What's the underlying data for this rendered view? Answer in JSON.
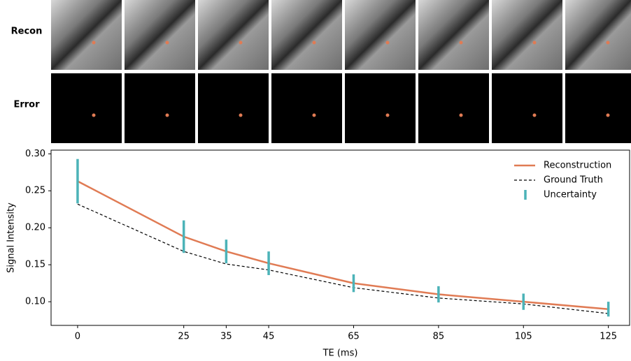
{
  "row_labels": [
    "Recon",
    "Error"
  ],
  "chart_data": {
    "type": "line",
    "x_label": "TE (ms)",
    "y_label": "Signal Intensity",
    "x": [
      0,
      25,
      35,
      45,
      65,
      85,
      105,
      125
    ],
    "series": [
      {
        "name": "Reconstruction",
        "color": "#e07b54",
        "values": [
          0.263,
          0.188,
          0.168,
          0.152,
          0.125,
          0.11,
          0.1,
          0.09
        ]
      },
      {
        "name": "Ground Truth",
        "color": "#000000",
        "values": [
          0.232,
          0.168,
          0.151,
          0.143,
          0.119,
          0.105,
          0.097,
          0.084
        ]
      },
      {
        "name": "Uncertainty",
        "color": "#4cb3b8",
        "values": [
          0.03,
          0.022,
          0.016,
          0.016,
          0.012,
          0.011,
          0.011,
          0.01
        ]
      }
    ],
    "xlim": [
      -6.25,
      130
    ],
    "xticks": [
      0,
      25,
      35,
      45,
      65,
      85,
      105,
      125
    ],
    "ylim": [
      0.068,
      0.305
    ],
    "yticks": [
      {
        "value": 0.1,
        "label": "0.10"
      },
      0.15,
      {
        "value": 0.2,
        "label": "0.20"
      },
      0.25,
      {
        "value": 0.3,
        "label": "0.30"
      }
    ],
    "legend": "upper right"
  }
}
